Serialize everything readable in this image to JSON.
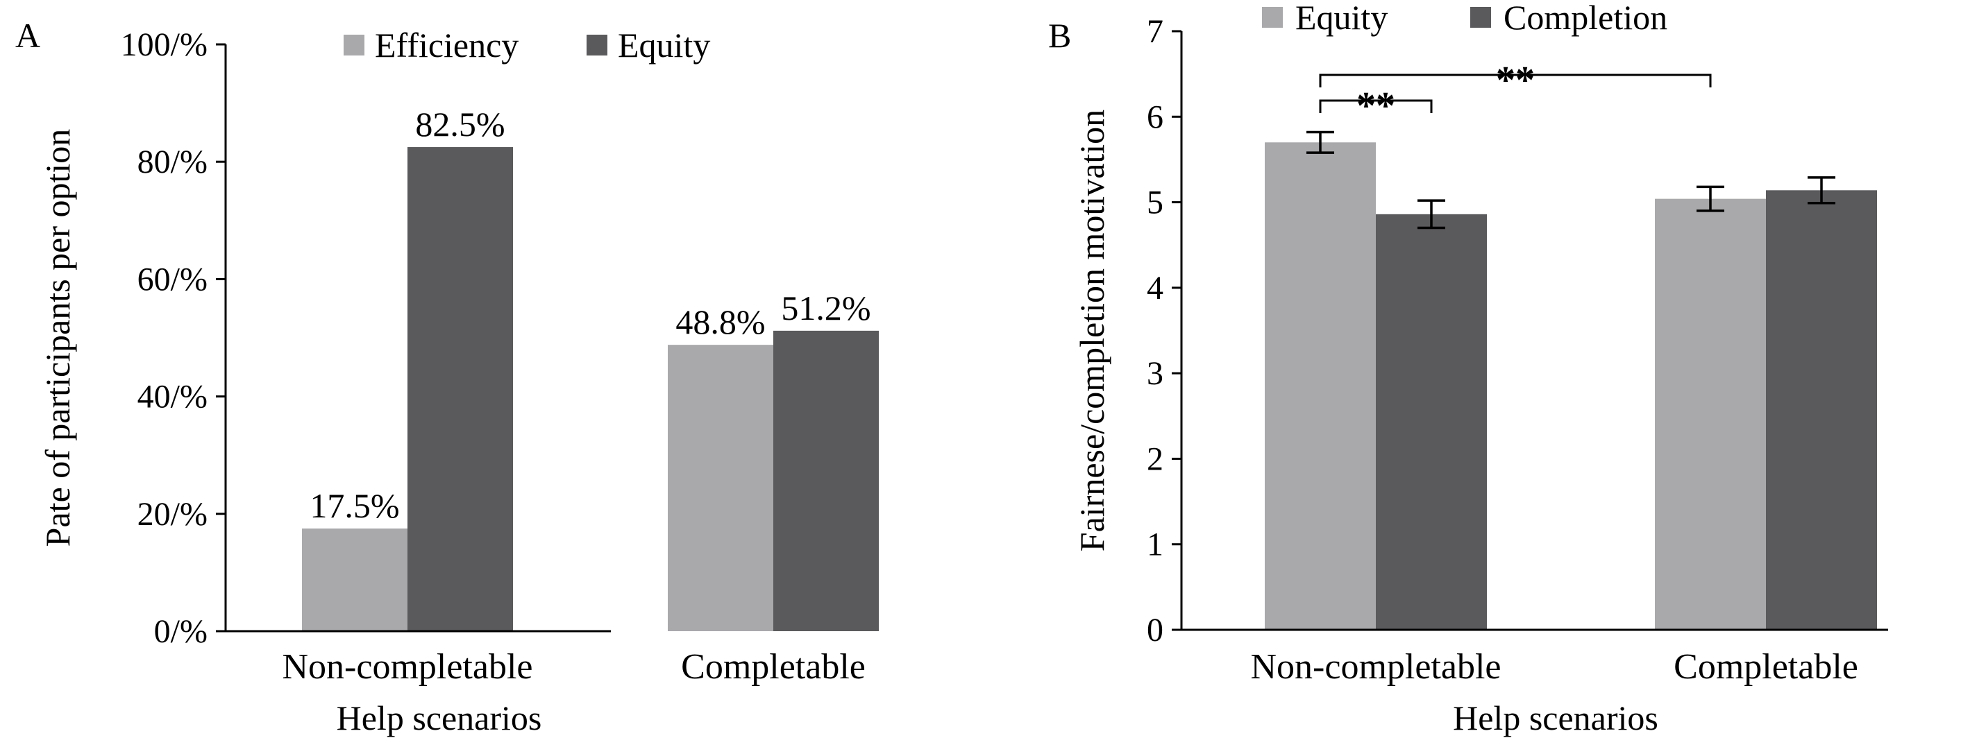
{
  "chart_data": [
    {
      "panel_label": "A",
      "type": "bar",
      "categories": [
        "Non-completable",
        "Completable"
      ],
      "series": [
        {
          "name": "Efficiency",
          "color": "#a9a8ab",
          "values": [
            17.5,
            48.8
          ],
          "labels": [
            "17.5%",
            "48.8%"
          ]
        },
        {
          "name": "Equity",
          "color": "#5a595b",
          "values": [
            82.5,
            51.2
          ],
          "labels": [
            "82.5%",
            "51.2%"
          ]
        }
      ],
      "xlabel": "Help scenarios",
      "ylabel": "Pate of participants per option",
      "ylim": [
        0,
        100
      ],
      "yticks": [
        0,
        20,
        40,
        60,
        80,
        100
      ],
      "ytick_labels": [
        "0/%",
        "20/%",
        "40/%",
        "60/%",
        "80/%",
        "100/%"
      ],
      "grid": false,
      "legend": "top"
    },
    {
      "panel_label": "B",
      "type": "bar",
      "categories": [
        "Non-completable",
        "Completable"
      ],
      "series": [
        {
          "name": "Equity",
          "color": "#a9a8ab",
          "values": [
            5.7,
            5.04
          ],
          "errors": [
            0.12,
            0.14
          ]
        },
        {
          "name": "Completion",
          "color": "#5a595b",
          "values": [
            4.86,
            5.14
          ],
          "errors": [
            0.16,
            0.15
          ]
        }
      ],
      "xlabel": "Help scenarios",
      "ylabel": "Fairnese/completion motivation",
      "ylim": [
        0,
        7
      ],
      "yticks": [
        0,
        1,
        2,
        3,
        4,
        5,
        6,
        7
      ],
      "ytick_labels": [
        "0",
        "1",
        "2",
        "3",
        "4",
        "5",
        "6",
        "7"
      ],
      "grid": false,
      "legend": "top",
      "annotations": [
        {
          "text": "**",
          "from": {
            "category": 0,
            "series": 0
          },
          "to": {
            "category": 0,
            "series": 1
          }
        },
        {
          "text": "**",
          "from": {
            "category": 0,
            "series": 0
          },
          "to": {
            "category": 1,
            "series": 0
          }
        }
      ]
    }
  ]
}
